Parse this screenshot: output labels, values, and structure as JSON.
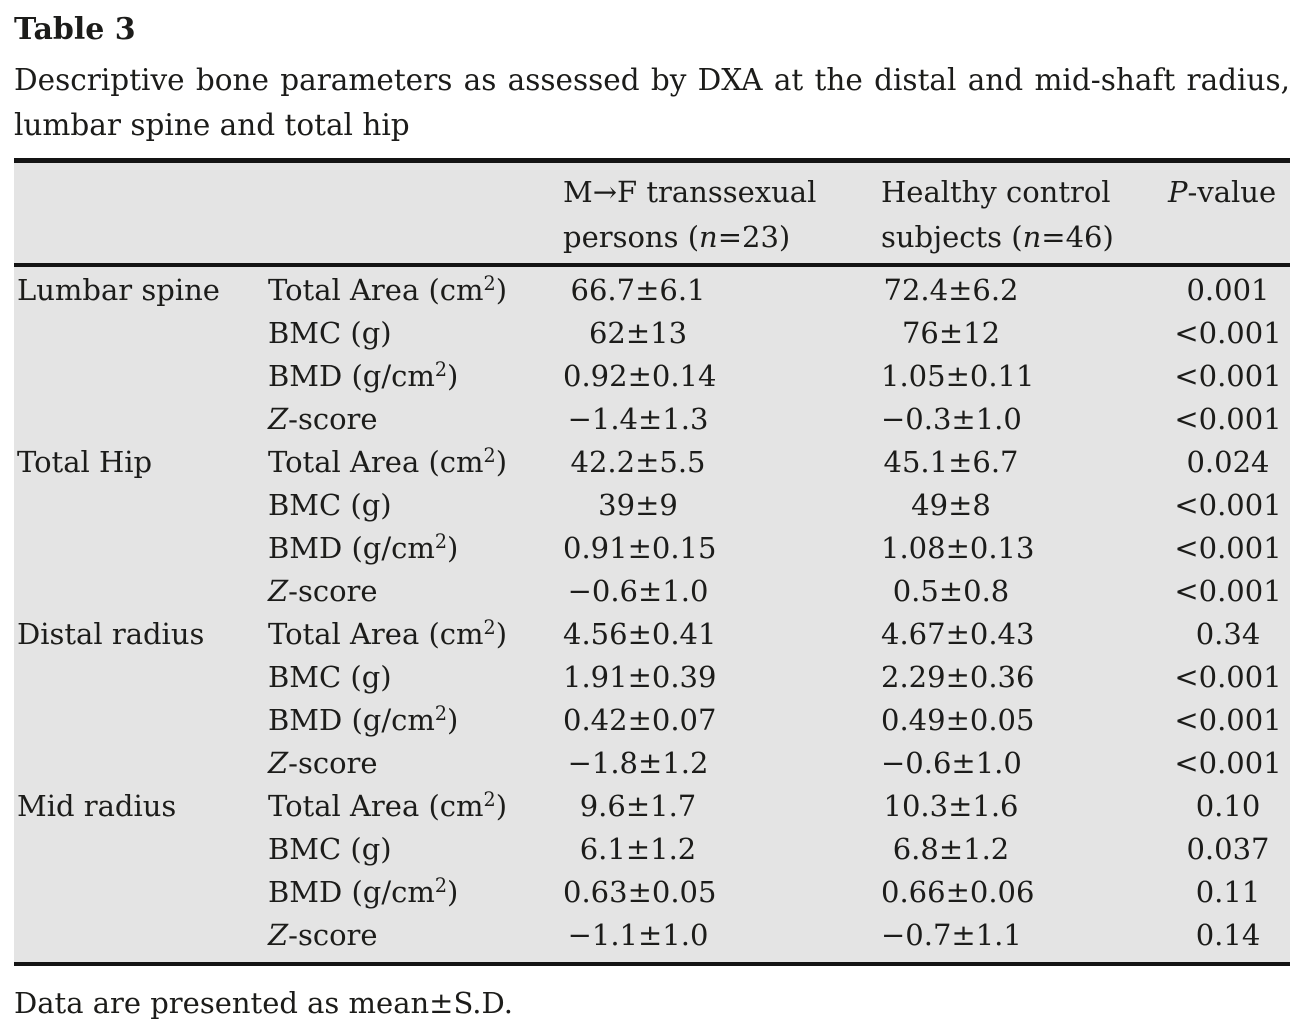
{
  "title": "Table 3",
  "caption_lines": [
    "Descriptive bone parameters as assessed by DXA at the distal and mid-shaft radius,",
    "lumbar spine and total hip"
  ],
  "header": {
    "site": "",
    "parameter": "",
    "group1_lines": [
      "M→F transsexual",
      "persons (*n*=23)"
    ],
    "group2_lines": [
      "Healthy control",
      "subjects (*n*=46)"
    ],
    "pvalue": "*P*-value"
  },
  "sections": [
    {
      "site": "Lumbar spine",
      "rows": [
        {
          "parameter": "Total Area (cm^2^)",
          "group1": "66.7±6.1",
          "group2": "72.4±6.2",
          "p": "0.001"
        },
        {
          "parameter": "BMC (g)",
          "group1": "62±13",
          "group2": "76±12",
          "p": "<0.001"
        },
        {
          "parameter": "BMD (g/cm^2^)",
          "group1": "0.92±0.14",
          "group2": "1.05±0.11",
          "p": "<0.001"
        },
        {
          "parameter": "*Z*-score",
          "group1": "−1.4±1.3",
          "group2": "−0.3±1.0",
          "p": "<0.001"
        }
      ]
    },
    {
      "site": "Total Hip",
      "rows": [
        {
          "parameter": "Total Area (cm^2^)",
          "group1": "42.2±5.5",
          "group2": "45.1±6.7",
          "p": "0.024"
        },
        {
          "parameter": "BMC (g)",
          "group1": "39±9",
          "group2": "49±8",
          "p": "<0.001"
        },
        {
          "parameter": "BMD (g/cm^2^)",
          "group1": "0.91±0.15",
          "group2": "1.08±0.13",
          "p": "<0.001"
        },
        {
          "parameter": "*Z*-score",
          "group1": "−0.6±1.0",
          "group2": "0.5±0.8",
          "p": "<0.001"
        }
      ]
    },
    {
      "site": "Distal radius",
      "rows": [
        {
          "parameter": "Total Area (cm^2^)",
          "group1": "4.56±0.41",
          "group2": "4.67±0.43",
          "p": "0.34"
        },
        {
          "parameter": "BMC (g)",
          "group1": "1.91±0.39",
          "group2": "2.29±0.36",
          "p": "<0.001"
        },
        {
          "parameter": "BMD (g/cm^2^)",
          "group1": "0.42±0.07",
          "group2": "0.49±0.05",
          "p": "<0.001"
        },
        {
          "parameter": "*Z*-score",
          "group1": "−1.8±1.2",
          "group2": "−0.6±1.0",
          "p": "<0.001"
        }
      ]
    },
    {
      "site": "Mid radius",
      "rows": [
        {
          "parameter": "Total Area (cm^2^)",
          "group1": "9.6±1.7",
          "group2": "10.3±1.6",
          "p": "0.10"
        },
        {
          "parameter": "BMC (g)",
          "group1": "6.1±1.2",
          "group2": "6.8±1.2",
          "p": "0.037"
        },
        {
          "parameter": "BMD (g/cm^2^)",
          "group1": "0.63±0.05",
          "group2": "0.66±0.06",
          "p": "0.11"
        },
        {
          "parameter": "*Z*-score",
          "group1": "−1.1±1.0",
          "group2": "−0.7±1.1",
          "p": "0.14"
        }
      ]
    }
  ],
  "footnote": "Data are presented as mean±S.D.",
  "colors": {
    "table_background": "#e4e4e4",
    "rule_color": "#141414",
    "text_color": "#1c1c1a",
    "page_background": "#ffffff"
  }
}
